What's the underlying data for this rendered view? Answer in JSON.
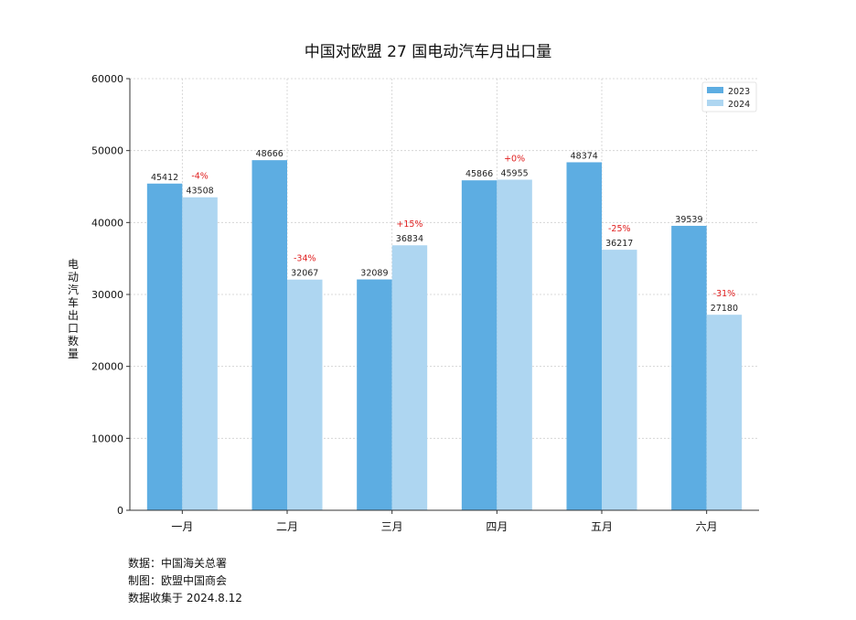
{
  "chart_data": {
    "type": "bar",
    "title": "中国对欧盟 27 国电动汽车月出口量",
    "ylabel": "电动汽车出口数量",
    "xlabel": "",
    "ylim": [
      0,
      60000
    ],
    "yticks": [
      0,
      10000,
      20000,
      30000,
      40000,
      50000,
      60000
    ],
    "categories": [
      "一月",
      "二月",
      "三月",
      "四月",
      "五月",
      "六月"
    ],
    "series": [
      {
        "name": "2023",
        "color": "#5dade2",
        "values": [
          45412,
          48666,
          32089,
          45866,
          48374,
          39539
        ]
      },
      {
        "name": "2024",
        "color": "#aed6f1",
        "values": [
          43508,
          32067,
          36834,
          45955,
          36217,
          27180
        ]
      }
    ],
    "change_labels": [
      "-4%",
      "-34%",
      "+15%",
      "+0%",
      "-25%",
      "-31%"
    ],
    "change_color": "#e02020",
    "grid": true,
    "legend_position": "top-right"
  },
  "footer": {
    "source": "数据：中国海关总署",
    "made_by": "制图：欧盟中国商会",
    "collected": "数据收集于 2024.8.12"
  }
}
